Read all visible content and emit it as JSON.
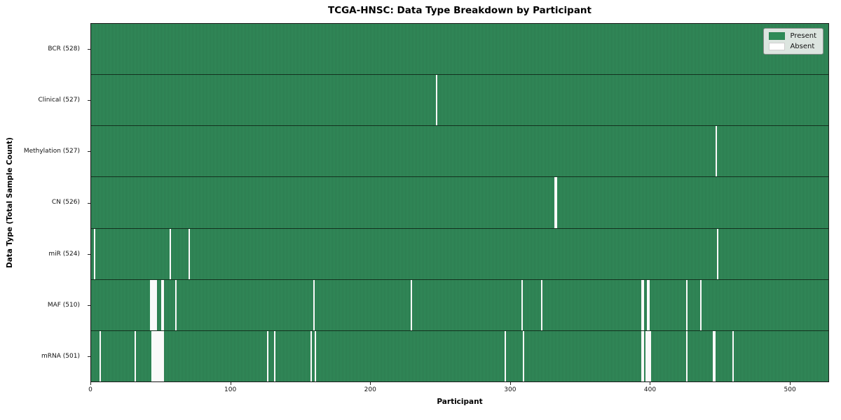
{
  "title": "TCGA-HNSC: Data Type Breakdown by Participant",
  "legend": {
    "items": [
      {
        "label": "Present",
        "color": "#2e8b57"
      },
      {
        "label": "Absent",
        "color": "#ffffff"
      }
    ]
  },
  "chart_data": {
    "type": "heatmap",
    "title": "TCGA-HNSC: Data Type Breakdown by Participant",
    "xlabel": "Participant",
    "ylabel": "Data Type (Total Sample Count)",
    "x_ticks": [
      0,
      100,
      200,
      300,
      400,
      500
    ],
    "x_range": [
      0,
      528
    ],
    "n_participants": 528,
    "grid": false,
    "legend_position": "upper right",
    "colors": {
      "present": "#2e8b57",
      "absent": "#ffffff"
    },
    "rows": [
      {
        "label": "BCR (528)",
        "data_type": "BCR",
        "total": 528,
        "absent_count": 0,
        "absent_participants": []
      },
      {
        "label": "Clinical (527)",
        "data_type": "Clinical",
        "total": 527,
        "absent_count": 1,
        "absent_participants": [
          247
        ]
      },
      {
        "label": "Methylation (527)",
        "data_type": "Methylation",
        "total": 527,
        "absent_count": 1,
        "absent_participants": [
          447
        ]
      },
      {
        "label": "CN (526)",
        "data_type": "CN",
        "total": 526,
        "absent_count": 2,
        "absent_participants": [
          332,
          333
        ]
      },
      {
        "label": "miR (524)",
        "data_type": "miR",
        "total": 524,
        "absent_count": 4,
        "absent_participants": [
          2,
          56,
          70,
          448
        ]
      },
      {
        "label": "MAF (510)",
        "data_type": "MAF",
        "total": 510,
        "absent_count": 18,
        "absent_participants": [
          42,
          43,
          44,
          45,
          46,
          50,
          51,
          60,
          159,
          229,
          308,
          322,
          394,
          395,
          398,
          399,
          426,
          436
        ]
      },
      {
        "label": "mRNA (501)",
        "data_type": "mRNA",
        "total": 501,
        "absent_count": 27,
        "absent_participants": [
          6,
          31,
          43,
          44,
          45,
          46,
          47,
          48,
          49,
          50,
          51,
          126,
          131,
          157,
          160,
          296,
          309,
          394,
          395,
          397,
          398,
          399,
          400,
          426,
          445,
          446,
          459
        ]
      }
    ]
  }
}
